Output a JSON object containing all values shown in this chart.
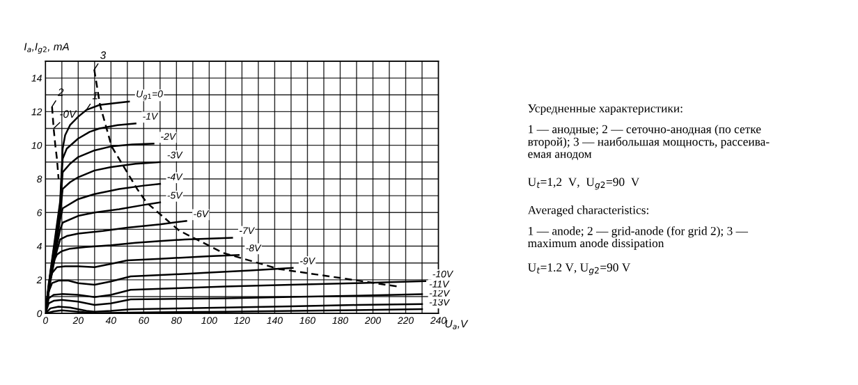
{
  "chart_data": {
    "type": "line",
    "xlabel": "U$_{a}$,V",
    "ylabel": "I$_{a}$,I$_{g2}$, mA",
    "xlim": [
      0,
      240
    ],
    "ylim": [
      0,
      15
    ],
    "xticks": [
      0,
      {
        "value": 10,
        "label": null
      },
      20,
      {
        "value": 30,
        "label": null
      },
      40,
      {
        "value": 50,
        "label": null
      },
      60,
      {
        "value": 70,
        "label": null
      },
      80,
      {
        "value": 90,
        "label": null
      },
      100,
      {
        "value": 110,
        "label": null
      },
      120,
      {
        "value": 130,
        "label": null
      },
      140,
      {
        "value": 150,
        "label": null
      },
      160,
      {
        "value": 170,
        "label": null
      },
      180,
      {
        "value": 190,
        "label": null
      },
      200,
      {
        "value": 210,
        "label": null
      },
      220,
      {
        "value": 230,
        "label": null
      },
      240
    ],
    "yticks": [
      0,
      {
        "value": 1,
        "label": null
      },
      2,
      {
        "value": 3,
        "label": null
      },
      4,
      {
        "value": 5,
        "label": null
      },
      6,
      {
        "value": 7,
        "label": null
      },
      8,
      {
        "value": 9,
        "label": null
      },
      10,
      {
        "value": 11,
        "label": null
      },
      12,
      {
        "value": 13,
        "label": null
      },
      14,
      {
        "value": 15,
        "label": null
      }
    ],
    "grid": true,
    "legend": false,
    "marker": "none",
    "line_style": "solid",
    "series": [
      {
        "name": "U$_{g1}$=0",
        "color": "#000000",
        "x": [
          0,
          3,
          6,
          9,
          10.5,
          12,
          15,
          20,
          25,
          33,
          42,
          51
        ],
        "values": [
          0,
          2.5,
          4.6,
          6.7,
          9.8,
          10.6,
          11.2,
          11.7,
          12.1,
          12.4,
          12.5,
          12.6
        ]
      },
      {
        "name": "-1V",
        "color": "#000000",
        "x": [
          0,
          3,
          6,
          9,
          10.5,
          13,
          20,
          27,
          33,
          44,
          55
        ],
        "values": [
          0,
          2.4,
          4.4,
          6.5,
          9.2,
          9.8,
          10.4,
          10.8,
          11.0,
          11.2,
          11.3
        ]
      },
      {
        "name": "-2V",
        "color": "#000000",
        "x": [
          0,
          3,
          6,
          9,
          10.5,
          15,
          20,
          30,
          40,
          53,
          66
        ],
        "values": [
          0,
          2.3,
          4.2,
          6.3,
          8.4,
          8.9,
          9.3,
          9.7,
          9.93,
          10.05,
          10.1
        ]
      },
      {
        "name": "-3V",
        "color": "#000000",
        "x": [
          0,
          3,
          6,
          9,
          10.5,
          15,
          20,
          30,
          40,
          55,
          70
        ],
        "values": [
          0,
          2.2,
          4.0,
          6.0,
          7.4,
          7.8,
          8.1,
          8.5,
          8.7,
          8.9,
          9.0
        ]
      },
      {
        "name": "-4V",
        "color": "#000000",
        "x": [
          0,
          3,
          6,
          9,
          10.5,
          20,
          30,
          45,
          60,
          70
        ],
        "values": [
          0,
          2.1,
          3.8,
          5.6,
          6.25,
          6.8,
          7.1,
          7.4,
          7.6,
          7.7
        ]
      },
      {
        "name": "-5V",
        "color": "#000000",
        "x": [
          0,
          3,
          6,
          9,
          10.5,
          20,
          30,
          45,
          60,
          70
        ],
        "values": [
          0,
          2.0,
          3.6,
          5.0,
          5.4,
          5.8,
          6.0,
          6.2,
          6.45,
          6.6
        ]
      },
      {
        "name": "-6V",
        "color": "#000000",
        "x": [
          0,
          3,
          6,
          9,
          13,
          20,
          35,
          50,
          70,
          86
        ],
        "values": [
          0,
          1.9,
          3.4,
          4.4,
          4.6,
          4.75,
          4.9,
          5.1,
          5.3,
          5.5
        ]
      },
      {
        "name": "-7V",
        "color": "#000000",
        "x": [
          0,
          2,
          4,
          7,
          10,
          15,
          25,
          40,
          55,
          70,
          85,
          100,
          114
        ],
        "values": [
          0,
          1.8,
          2.9,
          3.5,
          3.7,
          3.85,
          3.95,
          4.05,
          4.2,
          4.3,
          4.4,
          4.45,
          4.5
        ]
      },
      {
        "name": "-8V",
        "color": "#000000",
        "x": [
          0,
          2,
          4,
          7,
          12,
          20,
          30,
          40,
          50,
          70,
          100,
          118
        ],
        "values": [
          0,
          1.6,
          2.4,
          2.75,
          2.8,
          2.8,
          2.75,
          2.95,
          3.15,
          3.25,
          3.4,
          3.47
        ]
      },
      {
        "name": "-9V",
        "color": "#000000",
        "x": [
          0,
          2,
          4,
          8,
          14,
          20,
          30,
          40,
          52,
          75,
          100,
          125,
          151
        ],
        "values": [
          0,
          1.3,
          1.8,
          1.95,
          1.95,
          1.8,
          1.7,
          1.9,
          2.2,
          2.3,
          2.43,
          2.55,
          2.7
        ]
      },
      {
        "name": "-10V",
        "color": "#000000",
        "x": [
          0,
          2,
          5,
          10,
          20,
          30,
          40,
          52,
          80,
          110,
          150,
          190,
          232
        ],
        "values": [
          0,
          0.9,
          1.1,
          1.15,
          1.1,
          0.97,
          1.1,
          1.4,
          1.5,
          1.6,
          1.7,
          1.8,
          1.92
        ]
      },
      {
        "name": "-11V",
        "color": "#000000",
        "x": [
          0,
          2,
          5,
          10,
          20,
          30,
          40,
          52,
          80,
          110,
          150,
          190,
          230
        ],
        "values": [
          0,
          0.6,
          0.75,
          0.8,
          0.7,
          0.5,
          0.6,
          0.83,
          0.87,
          0.9,
          0.98,
          1.05,
          1.14
        ]
      },
      {
        "name": "-12V",
        "color": "#000000",
        "x": [
          0,
          3,
          8,
          15,
          25,
          30,
          40,
          52,
          80,
          110,
          150,
          190,
          230
        ],
        "values": [
          0,
          0.3,
          0.4,
          0.35,
          0.15,
          0.1,
          0.15,
          0.24,
          0.3,
          0.35,
          0.42,
          0.5,
          0.55
        ]
      },
      {
        "name": "-13V",
        "color": "#000000",
        "x": [
          0,
          5,
          10,
          20,
          30,
          52,
          110,
          170,
          230
        ],
        "values": [
          0,
          0.12,
          0.18,
          0.1,
          0.02,
          0.05,
          0.1,
          0.17,
          0.25
        ]
      },
      {
        "color": "#000000",
        "line_style": "dashed",
        "x": [
          29.8,
          33.3,
          40.4,
          56,
          61.7,
          81.6,
          108.5,
          142.6,
          182,
          215
        ],
        "values": [
          14.5,
          12.4,
          9.93,
          7.4,
          6.6,
          4.93,
          3.6,
          2.64,
          2.08,
          1.6
        ]
      },
      {
        "color": "#000000",
        "line_style": "dashed",
        "x": [
          4,
          5,
          6,
          7,
          8
        ],
        "values": [
          12.3,
          11,
          10,
          9.2,
          8.0
        ]
      }
    ],
    "annotations": [
      {
        "text": "1",
        "x": 25,
        "y": 12.1
      },
      {
        "text": "2",
        "x": 4,
        "y": 12.3
      },
      {
        "text": "3",
        "x": 29.8,
        "y": 14.5
      },
      {
        "text": "-0V",
        "x": 5,
        "y": 11
      },
      "Усредненные характеристики:",
      "1 — анодные; 2 — сеточно-анодная (по сетке\nвторой); 3 — наибольшая мощность, рассеива-\nемая анодом",
      "U$_{t}$=1,2  V,  U$_{g2}$=90  V",
      "Averaged characteristics:",
      "1 — anode; 2 — grid-anode (for grid 2); 3 —\nmaximum anode dissipation",
      "U$_{t}$=1.2 V, U$_{g2}$=90 V"
    ]
  }
}
